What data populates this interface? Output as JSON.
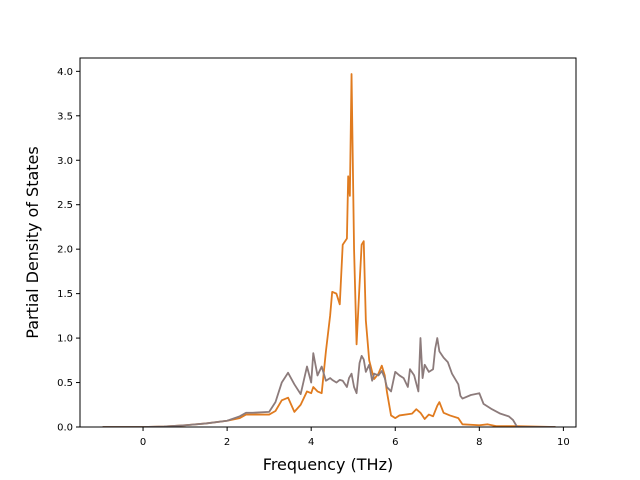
{
  "chart_data": {
    "type": "line",
    "title": "",
    "xlabel": "Frequency (THz)",
    "ylabel": "Partial Density of States",
    "xlim": [
      -1.5,
      10.3
    ],
    "ylim": [
      0.0,
      4.15
    ],
    "xticks": [
      0,
      2,
      4,
      6,
      8,
      10
    ],
    "yticks": [
      0.0,
      0.5,
      1.0,
      1.5,
      2.0,
      2.5,
      3.0,
      3.5,
      4.0
    ],
    "xtick_labels": [
      "0",
      "2",
      "4",
      "6",
      "8",
      "10"
    ],
    "ytick_labels": [
      "0.0",
      "0.5",
      "1.0",
      "1.5",
      "2.0",
      "2.5",
      "3.0",
      "3.5",
      "4.0"
    ],
    "grid": false,
    "legend": "none",
    "series": [
      {
        "color": "#e07b1f",
        "points": [
          [
            -0.95,
            0.0
          ],
          [
            0.0,
            0.0
          ],
          [
            0.5,
            0.005
          ],
          [
            1.0,
            0.02
          ],
          [
            1.5,
            0.04
          ],
          [
            2.0,
            0.07
          ],
          [
            2.3,
            0.1
          ],
          [
            2.45,
            0.14
          ],
          [
            2.6,
            0.14
          ],
          [
            3.0,
            0.14
          ],
          [
            3.15,
            0.18
          ],
          [
            3.3,
            0.3
          ],
          [
            3.45,
            0.33
          ],
          [
            3.6,
            0.17
          ],
          [
            3.75,
            0.25
          ],
          [
            3.9,
            0.4
          ],
          [
            4.0,
            0.38
          ],
          [
            4.05,
            0.45
          ],
          [
            4.15,
            0.4
          ],
          [
            4.25,
            0.38
          ],
          [
            4.35,
            0.85
          ],
          [
            4.45,
            1.25
          ],
          [
            4.5,
            1.52
          ],
          [
            4.6,
            1.5
          ],
          [
            4.68,
            1.38
          ],
          [
            4.75,
            2.05
          ],
          [
            4.85,
            2.12
          ],
          [
            4.88,
            2.82
          ],
          [
            4.92,
            2.6
          ],
          [
            4.96,
            3.97
          ],
          [
            5.02,
            2.0
          ],
          [
            5.08,
            0.93
          ],
          [
            5.15,
            1.6
          ],
          [
            5.2,
            2.05
          ],
          [
            5.25,
            2.09
          ],
          [
            5.3,
            1.2
          ],
          [
            5.38,
            0.75
          ],
          [
            5.45,
            0.62
          ],
          [
            5.5,
            0.54
          ],
          [
            5.6,
            0.6
          ],
          [
            5.68,
            0.69
          ],
          [
            5.75,
            0.58
          ],
          [
            5.8,
            0.4
          ],
          [
            5.9,
            0.13
          ],
          [
            6.0,
            0.1
          ],
          [
            6.1,
            0.13
          ],
          [
            6.4,
            0.15
          ],
          [
            6.5,
            0.2
          ],
          [
            6.6,
            0.16
          ],
          [
            6.7,
            0.09
          ],
          [
            6.8,
            0.14
          ],
          [
            6.9,
            0.12
          ],
          [
            7.0,
            0.24
          ],
          [
            7.05,
            0.28
          ],
          [
            7.15,
            0.16
          ],
          [
            7.3,
            0.13
          ],
          [
            7.5,
            0.1
          ],
          [
            7.6,
            0.03
          ],
          [
            8.0,
            0.02
          ],
          [
            8.2,
            0.03
          ],
          [
            8.4,
            0.01
          ],
          [
            8.9,
            0.01
          ],
          [
            9.8,
            0.0
          ]
        ]
      },
      {
        "color": "#8c7b7b",
        "points": [
          [
            -0.95,
            0.0
          ],
          [
            0.0,
            0.0
          ],
          [
            0.5,
            0.005
          ],
          [
            1.0,
            0.02
          ],
          [
            1.5,
            0.04
          ],
          [
            2.0,
            0.07
          ],
          [
            2.3,
            0.12
          ],
          [
            2.45,
            0.16
          ],
          [
            2.6,
            0.16
          ],
          [
            3.0,
            0.17
          ],
          [
            3.15,
            0.28
          ],
          [
            3.3,
            0.5
          ],
          [
            3.45,
            0.61
          ],
          [
            3.6,
            0.48
          ],
          [
            3.75,
            0.37
          ],
          [
            3.9,
            0.68
          ],
          [
            4.0,
            0.5
          ],
          [
            4.05,
            0.83
          ],
          [
            4.15,
            0.58
          ],
          [
            4.25,
            0.68
          ],
          [
            4.35,
            0.52
          ],
          [
            4.45,
            0.55
          ],
          [
            4.5,
            0.53
          ],
          [
            4.6,
            0.5
          ],
          [
            4.68,
            0.53
          ],
          [
            4.75,
            0.52
          ],
          [
            4.85,
            0.45
          ],
          [
            4.9,
            0.55
          ],
          [
            4.96,
            0.6
          ],
          [
            5.02,
            0.45
          ],
          [
            5.08,
            0.38
          ],
          [
            5.15,
            0.72
          ],
          [
            5.2,
            0.8
          ],
          [
            5.25,
            0.76
          ],
          [
            5.3,
            0.62
          ],
          [
            5.38,
            0.7
          ],
          [
            5.45,
            0.52
          ],
          [
            5.5,
            0.6
          ],
          [
            5.6,
            0.58
          ],
          [
            5.68,
            0.63
          ],
          [
            5.75,
            0.55
          ],
          [
            5.8,
            0.45
          ],
          [
            5.9,
            0.4
          ],
          [
            6.0,
            0.62
          ],
          [
            6.1,
            0.58
          ],
          [
            6.2,
            0.55
          ],
          [
            6.3,
            0.45
          ],
          [
            6.35,
            0.65
          ],
          [
            6.45,
            0.58
          ],
          [
            6.55,
            0.4
          ],
          [
            6.6,
            1.0
          ],
          [
            6.65,
            0.55
          ],
          [
            6.7,
            0.7
          ],
          [
            6.8,
            0.62
          ],
          [
            6.9,
            0.65
          ],
          [
            6.95,
            0.88
          ],
          [
            7.0,
            1.0
          ],
          [
            7.05,
            0.85
          ],
          [
            7.15,
            0.78
          ],
          [
            7.25,
            0.73
          ],
          [
            7.35,
            0.6
          ],
          [
            7.5,
            0.48
          ],
          [
            7.55,
            0.35
          ],
          [
            7.6,
            0.32
          ],
          [
            7.8,
            0.36
          ],
          [
            8.0,
            0.38
          ],
          [
            8.1,
            0.26
          ],
          [
            8.3,
            0.2
          ],
          [
            8.5,
            0.15
          ],
          [
            8.7,
            0.12
          ],
          [
            8.8,
            0.08
          ],
          [
            8.9,
            0.0
          ],
          [
            9.8,
            0.0
          ]
        ]
      }
    ]
  }
}
